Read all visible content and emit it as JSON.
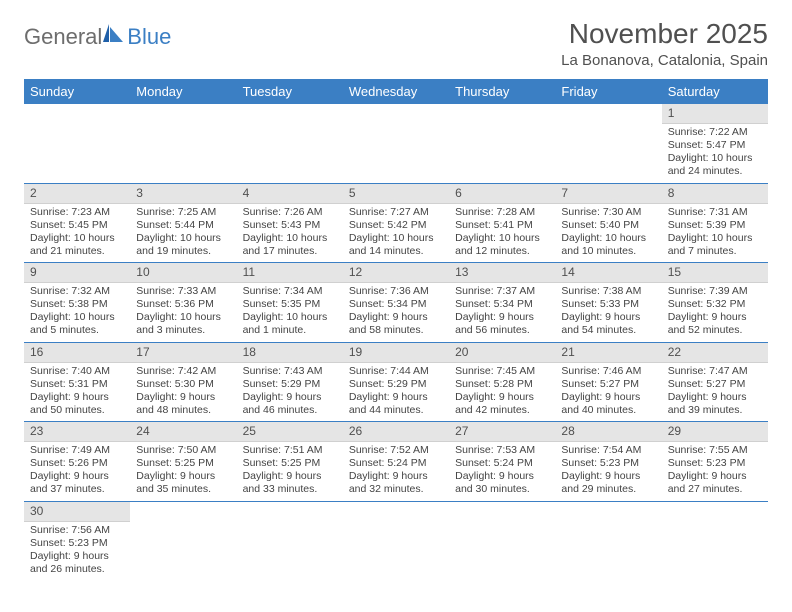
{
  "brand": {
    "general": "General",
    "blue": "Blue"
  },
  "title": "November 2025",
  "location": "La Bonanova, Catalonia, Spain",
  "colors": {
    "header_bg": "#3b7fc4",
    "header_text": "#ffffff",
    "daynum_bg": "#e5e5e5",
    "grid_line": "#3b7fc4",
    "body_text": "#444444",
    "title_text": "#505050",
    "logo_gray": "#6d6d6d",
    "logo_blue": "#3b7fc4"
  },
  "fonts": {
    "title_size_pt": 21,
    "location_size_pt": 11,
    "dayheader_size_pt": 10,
    "cell_size_pt": 8
  },
  "day_headers": [
    "Sunday",
    "Monday",
    "Tuesday",
    "Wednesday",
    "Thursday",
    "Friday",
    "Saturday"
  ],
  "weeks": [
    [
      null,
      null,
      null,
      null,
      null,
      null,
      {
        "n": "1",
        "sunrise": "Sunrise: 7:22 AM",
        "sunset": "Sunset: 5:47 PM",
        "daylight": "Daylight: 10 hours and 24 minutes."
      }
    ],
    [
      {
        "n": "2",
        "sunrise": "Sunrise: 7:23 AM",
        "sunset": "Sunset: 5:45 PM",
        "daylight": "Daylight: 10 hours and 21 minutes."
      },
      {
        "n": "3",
        "sunrise": "Sunrise: 7:25 AM",
        "sunset": "Sunset: 5:44 PM",
        "daylight": "Daylight: 10 hours and 19 minutes."
      },
      {
        "n": "4",
        "sunrise": "Sunrise: 7:26 AM",
        "sunset": "Sunset: 5:43 PM",
        "daylight": "Daylight: 10 hours and 17 minutes."
      },
      {
        "n": "5",
        "sunrise": "Sunrise: 7:27 AM",
        "sunset": "Sunset: 5:42 PM",
        "daylight": "Daylight: 10 hours and 14 minutes."
      },
      {
        "n": "6",
        "sunrise": "Sunrise: 7:28 AM",
        "sunset": "Sunset: 5:41 PM",
        "daylight": "Daylight: 10 hours and 12 minutes."
      },
      {
        "n": "7",
        "sunrise": "Sunrise: 7:30 AM",
        "sunset": "Sunset: 5:40 PM",
        "daylight": "Daylight: 10 hours and 10 minutes."
      },
      {
        "n": "8",
        "sunrise": "Sunrise: 7:31 AM",
        "sunset": "Sunset: 5:39 PM",
        "daylight": "Daylight: 10 hours and 7 minutes."
      }
    ],
    [
      {
        "n": "9",
        "sunrise": "Sunrise: 7:32 AM",
        "sunset": "Sunset: 5:38 PM",
        "daylight": "Daylight: 10 hours and 5 minutes."
      },
      {
        "n": "10",
        "sunrise": "Sunrise: 7:33 AM",
        "sunset": "Sunset: 5:36 PM",
        "daylight": "Daylight: 10 hours and 3 minutes."
      },
      {
        "n": "11",
        "sunrise": "Sunrise: 7:34 AM",
        "sunset": "Sunset: 5:35 PM",
        "daylight": "Daylight: 10 hours and 1 minute."
      },
      {
        "n": "12",
        "sunrise": "Sunrise: 7:36 AM",
        "sunset": "Sunset: 5:34 PM",
        "daylight": "Daylight: 9 hours and 58 minutes."
      },
      {
        "n": "13",
        "sunrise": "Sunrise: 7:37 AM",
        "sunset": "Sunset: 5:34 PM",
        "daylight": "Daylight: 9 hours and 56 minutes."
      },
      {
        "n": "14",
        "sunrise": "Sunrise: 7:38 AM",
        "sunset": "Sunset: 5:33 PM",
        "daylight": "Daylight: 9 hours and 54 minutes."
      },
      {
        "n": "15",
        "sunrise": "Sunrise: 7:39 AM",
        "sunset": "Sunset: 5:32 PM",
        "daylight": "Daylight: 9 hours and 52 minutes."
      }
    ],
    [
      {
        "n": "16",
        "sunrise": "Sunrise: 7:40 AM",
        "sunset": "Sunset: 5:31 PM",
        "daylight": "Daylight: 9 hours and 50 minutes."
      },
      {
        "n": "17",
        "sunrise": "Sunrise: 7:42 AM",
        "sunset": "Sunset: 5:30 PM",
        "daylight": "Daylight: 9 hours and 48 minutes."
      },
      {
        "n": "18",
        "sunrise": "Sunrise: 7:43 AM",
        "sunset": "Sunset: 5:29 PM",
        "daylight": "Daylight: 9 hours and 46 minutes."
      },
      {
        "n": "19",
        "sunrise": "Sunrise: 7:44 AM",
        "sunset": "Sunset: 5:29 PM",
        "daylight": "Daylight: 9 hours and 44 minutes."
      },
      {
        "n": "20",
        "sunrise": "Sunrise: 7:45 AM",
        "sunset": "Sunset: 5:28 PM",
        "daylight": "Daylight: 9 hours and 42 minutes."
      },
      {
        "n": "21",
        "sunrise": "Sunrise: 7:46 AM",
        "sunset": "Sunset: 5:27 PM",
        "daylight": "Daylight: 9 hours and 40 minutes."
      },
      {
        "n": "22",
        "sunrise": "Sunrise: 7:47 AM",
        "sunset": "Sunset: 5:27 PM",
        "daylight": "Daylight: 9 hours and 39 minutes."
      }
    ],
    [
      {
        "n": "23",
        "sunrise": "Sunrise: 7:49 AM",
        "sunset": "Sunset: 5:26 PM",
        "daylight": "Daylight: 9 hours and 37 minutes."
      },
      {
        "n": "24",
        "sunrise": "Sunrise: 7:50 AM",
        "sunset": "Sunset: 5:25 PM",
        "daylight": "Daylight: 9 hours and 35 minutes."
      },
      {
        "n": "25",
        "sunrise": "Sunrise: 7:51 AM",
        "sunset": "Sunset: 5:25 PM",
        "daylight": "Daylight: 9 hours and 33 minutes."
      },
      {
        "n": "26",
        "sunrise": "Sunrise: 7:52 AM",
        "sunset": "Sunset: 5:24 PM",
        "daylight": "Daylight: 9 hours and 32 minutes."
      },
      {
        "n": "27",
        "sunrise": "Sunrise: 7:53 AM",
        "sunset": "Sunset: 5:24 PM",
        "daylight": "Daylight: 9 hours and 30 minutes."
      },
      {
        "n": "28",
        "sunrise": "Sunrise: 7:54 AM",
        "sunset": "Sunset: 5:23 PM",
        "daylight": "Daylight: 9 hours and 29 minutes."
      },
      {
        "n": "29",
        "sunrise": "Sunrise: 7:55 AM",
        "sunset": "Sunset: 5:23 PM",
        "daylight": "Daylight: 9 hours and 27 minutes."
      }
    ],
    [
      {
        "n": "30",
        "sunrise": "Sunrise: 7:56 AM",
        "sunset": "Sunset: 5:23 PM",
        "daylight": "Daylight: 9 hours and 26 minutes."
      },
      null,
      null,
      null,
      null,
      null,
      null
    ]
  ]
}
